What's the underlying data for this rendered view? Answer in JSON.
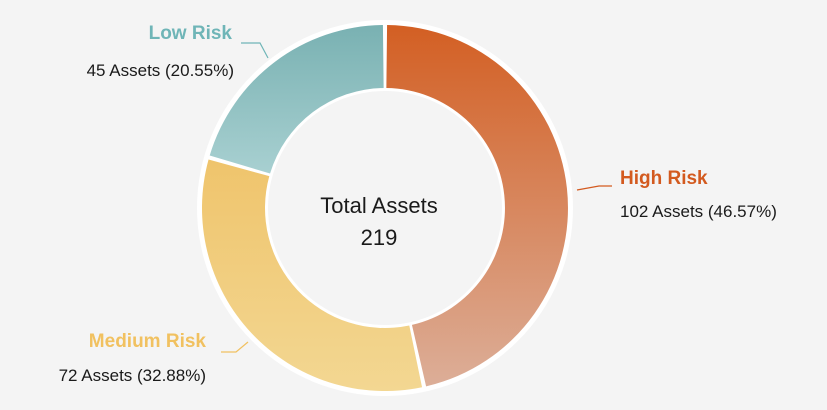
{
  "chart_data": {
    "type": "pie",
    "variant": "donut",
    "center_title": "Total Assets",
    "center_value": "219",
    "total": 219,
    "slices": [
      {
        "key": "high",
        "label": "High Risk",
        "value": 102,
        "percent": 46.57,
        "detail": "102 Assets (46.57%)",
        "color_top": "#d35f23",
        "color_bottom": "#dcae98",
        "label_color": "#d35a1f"
      },
      {
        "key": "medium",
        "label": "Medium Risk",
        "value": 72,
        "percent": 32.88,
        "detail": "72 Assets (32.88%)",
        "color_top": "#efc46c",
        "color_bottom": "#f3d792",
        "label_color": "#f1c160"
      },
      {
        "key": "low",
        "label": "Low Risk",
        "value": 45,
        "percent": 20.55,
        "detail": "45 Assets (20.55%)",
        "color_top": "#79b1b2",
        "color_bottom": "#a8d0d1",
        "label_color": "#6fb5b7"
      }
    ],
    "background": "#f4f4f4",
    "ring_gap_color": "#ffffff"
  }
}
